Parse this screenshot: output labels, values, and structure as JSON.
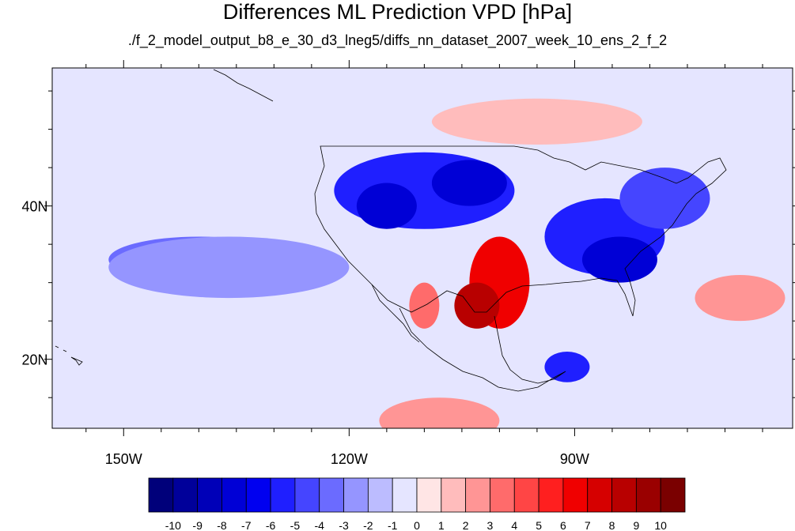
{
  "title": "Differences ML Prediction VPD [hPa]",
  "subtitle": "./f_2_model_output_b8_e_30_d3_lneg5/diffs_nn_dataset_2007_week_10_ens_2_f_2",
  "map": {
    "projection": "cylindrical-equidistant",
    "lon_range": [
      -159.5,
      -61
    ],
    "lat_range": [
      11,
      58
    ],
    "x_ticks": [
      {
        "lon": -150,
        "label": "150W"
      },
      {
        "lon": -120,
        "label": "120W"
      },
      {
        "lon": -90,
        "label": "90W"
      }
    ],
    "y_ticks": [
      {
        "lat": 20,
        "label": "20N"
      },
      {
        "lat": 40,
        "label": "40N"
      }
    ],
    "blobs": [
      {
        "lon": -110,
        "lat": 42,
        "level": -6,
        "rx": 12,
        "ry": 5
      },
      {
        "lon": -104,
        "lat": 43,
        "level": -8,
        "rx": 5,
        "ry": 3
      },
      {
        "lon": -115,
        "lat": 40,
        "level": -8,
        "rx": 4,
        "ry": 3
      },
      {
        "lon": -86,
        "lat": 36,
        "level": -6,
        "rx": 8,
        "ry": 5
      },
      {
        "lon": -84,
        "lat": 33,
        "level": -8,
        "rx": 5,
        "ry": 3
      },
      {
        "lon": -78,
        "lat": 41,
        "level": -5,
        "rx": 6,
        "ry": 4
      },
      {
        "lon": -140,
        "lat": 33,
        "level": -4,
        "rx": 12,
        "ry": 3
      },
      {
        "lon": -136,
        "lat": 32,
        "level": -3,
        "rx": 16,
        "ry": 4
      },
      {
        "lon": -100,
        "lat": 30,
        "level": 6,
        "rx": 4,
        "ry": 6
      },
      {
        "lon": -103,
        "lat": 27,
        "level": 8,
        "rx": 3,
        "ry": 3
      },
      {
        "lon": -110,
        "lat": 27,
        "level": 3,
        "rx": 2,
        "ry": 3
      },
      {
        "lon": -91,
        "lat": 19,
        "level": -6,
        "rx": 3,
        "ry": 2
      },
      {
        "lon": -95,
        "lat": 51,
        "level": 1,
        "rx": 14,
        "ry": 3
      },
      {
        "lon": -68,
        "lat": 28,
        "level": 2,
        "rx": 6,
        "ry": 3
      },
      {
        "lon": -108,
        "lat": 12,
        "level": 2,
        "rx": 8,
        "ry": 3
      }
    ]
  },
  "colorbar": {
    "labels": [
      "-10",
      "-9",
      "-8",
      "-7",
      "-6",
      "-5",
      "-4",
      "-3",
      "-2",
      "-1",
      "0",
      "1",
      "2",
      "3",
      "4",
      "5",
      "6",
      "7",
      "8",
      "9",
      "10"
    ],
    "colors": [
      "#00007a",
      "#00009a",
      "#0000b8",
      "#0000d6",
      "#0000f0",
      "#1f1fff",
      "#4545ff",
      "#6b6bff",
      "#9595ff",
      "#bcbcff",
      "#e5e5ff",
      "#ffe5e5",
      "#ffbcbc",
      "#ff9595",
      "#ff6b6b",
      "#ff4545",
      "#ff1f1f",
      "#f00000",
      "#d60000",
      "#b80000",
      "#9a0000",
      "#7a0000"
    ]
  }
}
